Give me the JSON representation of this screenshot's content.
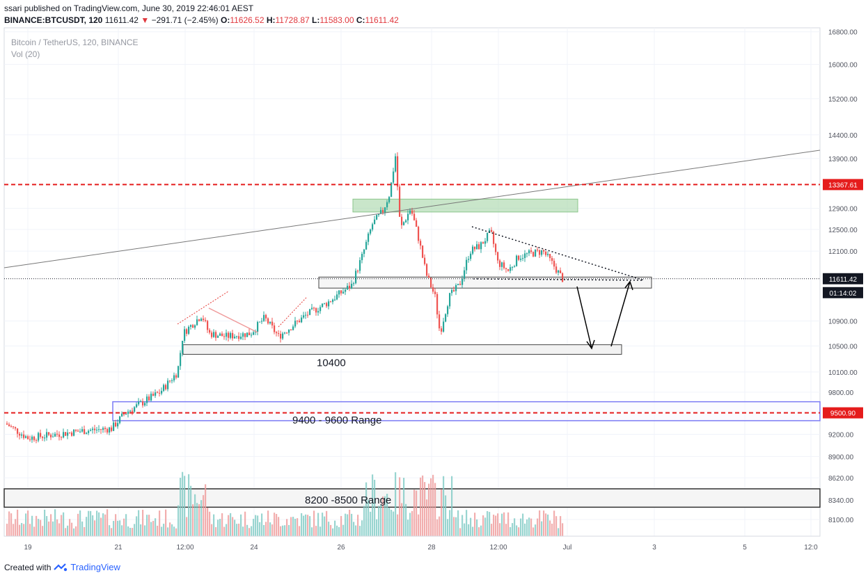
{
  "header": {
    "user": "ssari",
    "published": "published on TradingView.com, June 30, 2019 22:46:01 AEST",
    "symbol": "BINANCE:BTCUSDT, 120",
    "last": "11611.42",
    "change": "−291.71 (−2.45%)",
    "o_label": "O:",
    "o_value": "11626.52",
    "h_label": "H:",
    "h_value": "11728.87",
    "l_label": "L:",
    "l_value": "11583.00",
    "c_label": "C:",
    "c_value": "11611.42"
  },
  "legend": {
    "series": "Bitcoin / TetherUS, 120, BINANCE",
    "volume": "Vol (20)"
  },
  "footer": {
    "created": "Created with",
    "brand": "TradingView"
  },
  "colors": {
    "up": "#26a69a",
    "down": "#ef5350",
    "up_vol": "#80cbc4",
    "down_vol": "#ef9a9a",
    "dashed_level": "#e51c1c",
    "range_border": "#7b7bf5",
    "resistance_zone": "#a5d6a7"
  },
  "chart_data": {
    "type": "candlestick",
    "y_scale": "log",
    "ylim": [
      7900,
      16900
    ],
    "y_ticks": [
      "16800.00",
      "16000.00",
      "15200.00",
      "14400.00",
      "13900.00",
      "12900.00",
      "12500.00",
      "12100.00",
      "10900.00",
      "10500.00",
      "10100.00",
      "9800.00",
      "9200.00",
      "8900.00",
      "8620.00",
      "8340.00",
      "8100.00"
    ],
    "x_ticks": [
      "19",
      "21",
      "12:00",
      "24",
      "26",
      "28",
      "12:00",
      "Jul",
      "3",
      "5",
      "12:0"
    ],
    "price_labels": [
      {
        "text": "13367.61",
        "value": 13367.61,
        "style": "red"
      },
      {
        "text": "11611.42",
        "value": 11611.42,
        "style": "dark"
      },
      {
        "text": "01:14:02",
        "value": 11400,
        "style": "dark"
      },
      {
        "text": "9500.90",
        "value": 9500.9,
        "style": "red"
      }
    ],
    "annotations": [
      {
        "text": "10400",
        "value": 10400
      },
      {
        "text": "9400 - 9600 Range",
        "low": 9400,
        "high": 9600
      },
      {
        "text": "8200 -8500 Range",
        "low": 8250,
        "high": 8480
      }
    ],
    "horizontal_levels": [
      13367.61,
      9500.9
    ],
    "current_price": 11611.42,
    "resistance_zone": {
      "low": 12830,
      "high": 13080
    },
    "support_zone": {
      "low": 11450,
      "high": 11640
    },
    "volume": {
      "max": 100
    }
  }
}
